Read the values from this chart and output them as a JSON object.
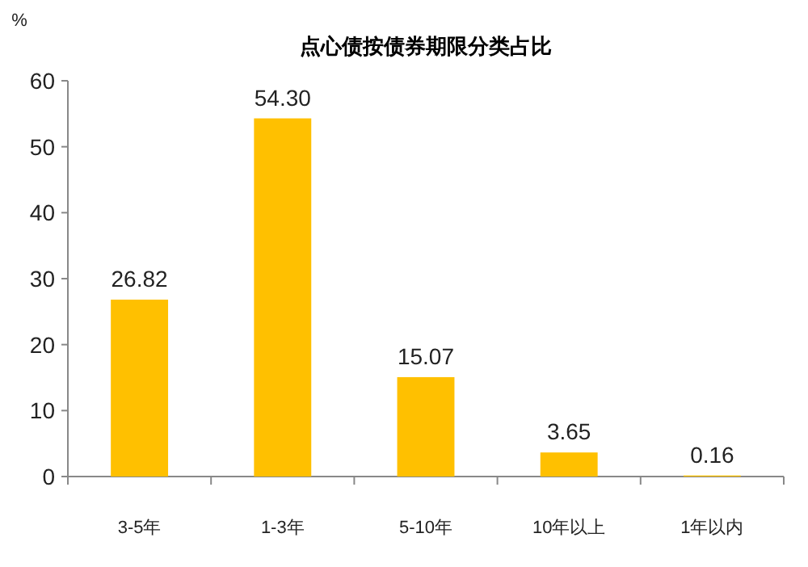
{
  "chart_data": {
    "type": "bar",
    "title": "点心债按债券期限分类占比",
    "ylabel": "%",
    "categories": [
      "3-5年",
      "1-3年",
      "5-10年",
      "10年以上",
      "1年以内"
    ],
    "values": [
      26.82,
      54.3,
      15.07,
      3.65,
      0.16
    ],
    "value_labels": [
      "26.82",
      "54.30",
      "15.07",
      "3.65",
      "0.16"
    ],
    "color": "#ffc000",
    "ylim": [
      0,
      60
    ],
    "yticks": [
      0,
      10,
      20,
      30,
      40,
      50,
      60
    ]
  }
}
